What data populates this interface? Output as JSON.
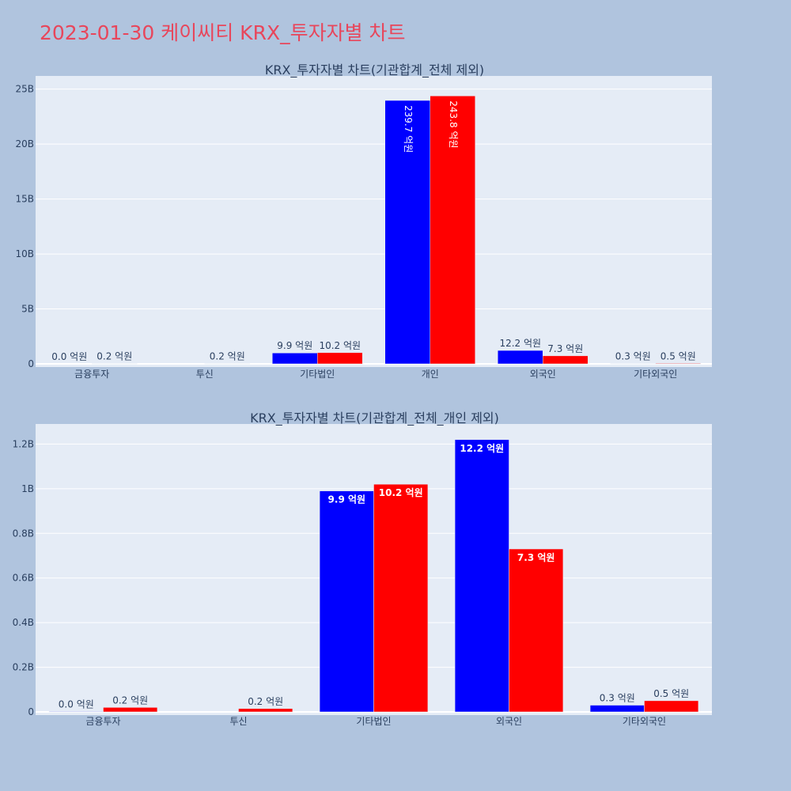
{
  "title": "2023-01-30 케이씨티 KRX_투자자별 차트",
  "colors": {
    "series1": "#0000ff",
    "series2": "#ff0000",
    "plot_bg": "#e5ecf6",
    "page_bg": "#b0c4de",
    "title": "#e8465b"
  },
  "chart_data": [
    {
      "type": "bar",
      "title": "KRX_투자자별 차트(기관합계_전체 제외)",
      "categories": [
        "금융투자",
        "투신",
        "기타법인",
        "개인",
        "외국인",
        "기타외국인"
      ],
      "series": [
        {
          "color": "#0000ff",
          "values": [
            0,
            null,
            990000000,
            23970000000,
            1220000000,
            30000000
          ],
          "labels": [
            "0.0 억원",
            "",
            "9.9 억원",
            "239.7 억원",
            "12.2 억원",
            "0.3 억원"
          ]
        },
        {
          "color": "#ff0000",
          "values": [
            20000000,
            20000000,
            1020000000,
            24380000000,
            730000000,
            50000000
          ],
          "labels": [
            "0.2 억원",
            "0.2 억원",
            "10.2 억원",
            "243.8 억원",
            "7.3 억원",
            "0.5 억원"
          ]
        }
      ],
      "ylim": [
        0,
        26200000000
      ],
      "yticks": [
        0,
        5000000000,
        10000000000,
        15000000000,
        20000000000,
        25000000000
      ],
      "ytick_labels": [
        "0",
        "5B",
        "10B",
        "15B",
        "20B",
        "25B"
      ],
      "grid": true
    },
    {
      "type": "bar",
      "title": "KRX_투자자별 차트(기관합계_전체_개인 제외)",
      "categories": [
        "금융투자",
        "투신",
        "기타법인",
        "외국인",
        "기타외국인"
      ],
      "series": [
        {
          "color": "#0000ff",
          "values": [
            2000000,
            null,
            990000000,
            1220000000,
            30000000
          ],
          "labels": [
            "0.0 억원",
            "",
            "9.9 억원",
            "12.2 억원",
            "0.3 억원"
          ]
        },
        {
          "color": "#ff0000",
          "values": [
            20000000,
            15000000,
            1020000000,
            730000000,
            50000000
          ],
          "labels": [
            "0.2 억원",
            "0.2 억원",
            "10.2 억원",
            "7.3 억원",
            "0.5 억원"
          ]
        }
      ],
      "ylim": [
        0,
        1290000000
      ],
      "yticks": [
        0,
        200000000,
        400000000,
        600000000,
        800000000,
        1000000000,
        1200000000
      ],
      "ytick_labels": [
        "0",
        "0.2B",
        "0.4B",
        "0.6B",
        "0.8B",
        "1B",
        "1.2B"
      ],
      "grid": true
    }
  ]
}
